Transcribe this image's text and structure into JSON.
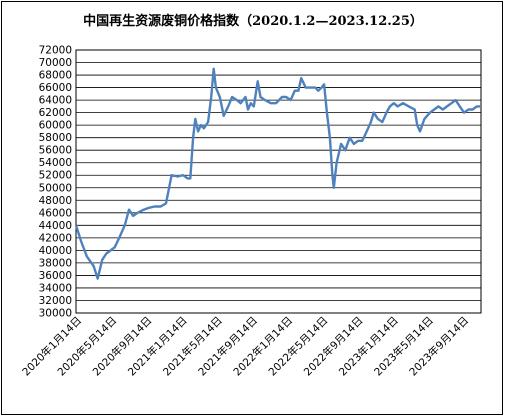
{
  "chart_data": {
    "type": "line",
    "title": "中国再生资源废铜价格指数（2020.1.2—2023.12.25）",
    "xlabel": "",
    "ylabel": "",
    "ylim": [
      30000,
      72000
    ],
    "ytick_step": 2000,
    "grid": "horizontal",
    "legend": "none",
    "x_ticks": [
      "2020年1月14日",
      "2020年5月14日",
      "2020年9月14日",
      "2021年1月14日",
      "2021年5月14日",
      "2021年9月14日",
      "2022年1月14日",
      "2022年5月14日",
      "2022年9月14日",
      "2023年1月14日",
      "2023年5月14日",
      "2023年9月14日"
    ],
    "x_range": [
      "2020-01-02",
      "2023-12-25"
    ],
    "line_color": "#4f81bd",
    "series": [
      {
        "name": "",
        "points": [
          [
            "2020-01-02",
            44000
          ],
          [
            "2020-01-20",
            41500
          ],
          [
            "2020-02-10",
            39000
          ],
          [
            "2020-03-05",
            37500
          ],
          [
            "2020-03-20",
            35500
          ],
          [
            "2020-04-05",
            38500
          ],
          [
            "2020-04-20",
            39500
          ],
          [
            "2020-05-05",
            40000
          ],
          [
            "2020-05-20",
            40500
          ],
          [
            "2020-06-05",
            42000
          ],
          [
            "2020-06-25",
            44000
          ],
          [
            "2020-07-10",
            46500
          ],
          [
            "2020-07-25",
            45500
          ],
          [
            "2020-08-10",
            46000
          ],
          [
            "2020-09-01",
            46500
          ],
          [
            "2020-09-20",
            46800
          ],
          [
            "2020-10-10",
            47000
          ],
          [
            "2020-11-01",
            47000
          ],
          [
            "2020-11-20",
            47500
          ],
          [
            "2020-12-01",
            50000
          ],
          [
            "2020-12-10",
            52000
          ],
          [
            "2021-01-01",
            51800
          ],
          [
            "2021-01-20",
            52000
          ],
          [
            "2021-02-05",
            51500
          ],
          [
            "2021-02-15",
            51500
          ],
          [
            "2021-02-25",
            58000
          ],
          [
            "2021-03-05",
            61000
          ],
          [
            "2021-03-15",
            59000
          ],
          [
            "2021-03-25",
            60000
          ],
          [
            "2021-04-05",
            59500
          ],
          [
            "2021-04-20",
            60500
          ],
          [
            "2021-05-01",
            64500
          ],
          [
            "2021-05-10",
            69000
          ],
          [
            "2021-05-18",
            66000
          ],
          [
            "2021-06-01",
            64500
          ],
          [
            "2021-06-15",
            61500
          ],
          [
            "2021-07-01",
            63000
          ],
          [
            "2021-07-15",
            64500
          ],
          [
            "2021-08-01",
            64000
          ],
          [
            "2021-08-15",
            63500
          ],
          [
            "2021-09-01",
            64500
          ],
          [
            "2021-09-10",
            62500
          ],
          [
            "2021-09-20",
            63500
          ],
          [
            "2021-10-01",
            63000
          ],
          [
            "2021-10-15",
            67000
          ],
          [
            "2021-10-25",
            64500
          ],
          [
            "2021-11-10",
            64000
          ],
          [
            "2021-12-01",
            63500
          ],
          [
            "2021-12-20",
            63500
          ],
          [
            "2022-01-10",
            64500
          ],
          [
            "2022-01-25",
            64500
          ],
          [
            "2022-02-10",
            64000
          ],
          [
            "2022-02-25",
            65500
          ],
          [
            "2022-03-10",
            65500
          ],
          [
            "2022-03-20",
            67500
          ],
          [
            "2022-04-05",
            66000
          ],
          [
            "2022-04-25",
            66000
          ],
          [
            "2022-05-10",
            66000
          ],
          [
            "2022-05-20",
            65500
          ],
          [
            "2022-06-01",
            66000
          ],
          [
            "2022-06-10",
            66500
          ],
          [
            "2022-06-20",
            62000
          ],
          [
            "2022-07-01",
            58000
          ],
          [
            "2022-07-10",
            52000
          ],
          [
            "2022-07-15",
            50000
          ],
          [
            "2022-07-25",
            54000
          ],
          [
            "2022-08-10",
            57000
          ],
          [
            "2022-08-25",
            56000
          ],
          [
            "2022-09-10",
            58000
          ],
          [
            "2022-09-25",
            57000
          ],
          [
            "2022-10-10",
            57500
          ],
          [
            "2022-10-25",
            57500
          ],
          [
            "2022-11-10",
            59000
          ],
          [
            "2022-11-25",
            60500
          ],
          [
            "2022-12-05",
            62000
          ],
          [
            "2022-12-20",
            61000
          ],
          [
            "2023-01-05",
            60500
          ],
          [
            "2023-01-20",
            62000
          ],
          [
            "2023-02-01",
            63000
          ],
          [
            "2023-02-15",
            63500
          ],
          [
            "2023-03-01",
            63000
          ],
          [
            "2023-03-20",
            63500
          ],
          [
            "2023-04-10",
            63000
          ],
          [
            "2023-05-01",
            62500
          ],
          [
            "2023-05-10",
            60000
          ],
          [
            "2023-05-20",
            59000
          ],
          [
            "2023-06-05",
            61000
          ],
          [
            "2023-06-25",
            62000
          ],
          [
            "2023-07-10",
            62500
          ],
          [
            "2023-07-25",
            63000
          ],
          [
            "2023-08-10",
            62500
          ],
          [
            "2023-08-25",
            63000
          ],
          [
            "2023-09-10",
            63500
          ],
          [
            "2023-09-25",
            64000
          ],
          [
            "2023-10-10",
            63000
          ],
          [
            "2023-10-25",
            62000
          ],
          [
            "2023-11-10",
            62500
          ],
          [
            "2023-11-25",
            62500
          ],
          [
            "2023-12-10",
            63000
          ],
          [
            "2023-12-25",
            63000
          ]
        ]
      }
    ]
  }
}
